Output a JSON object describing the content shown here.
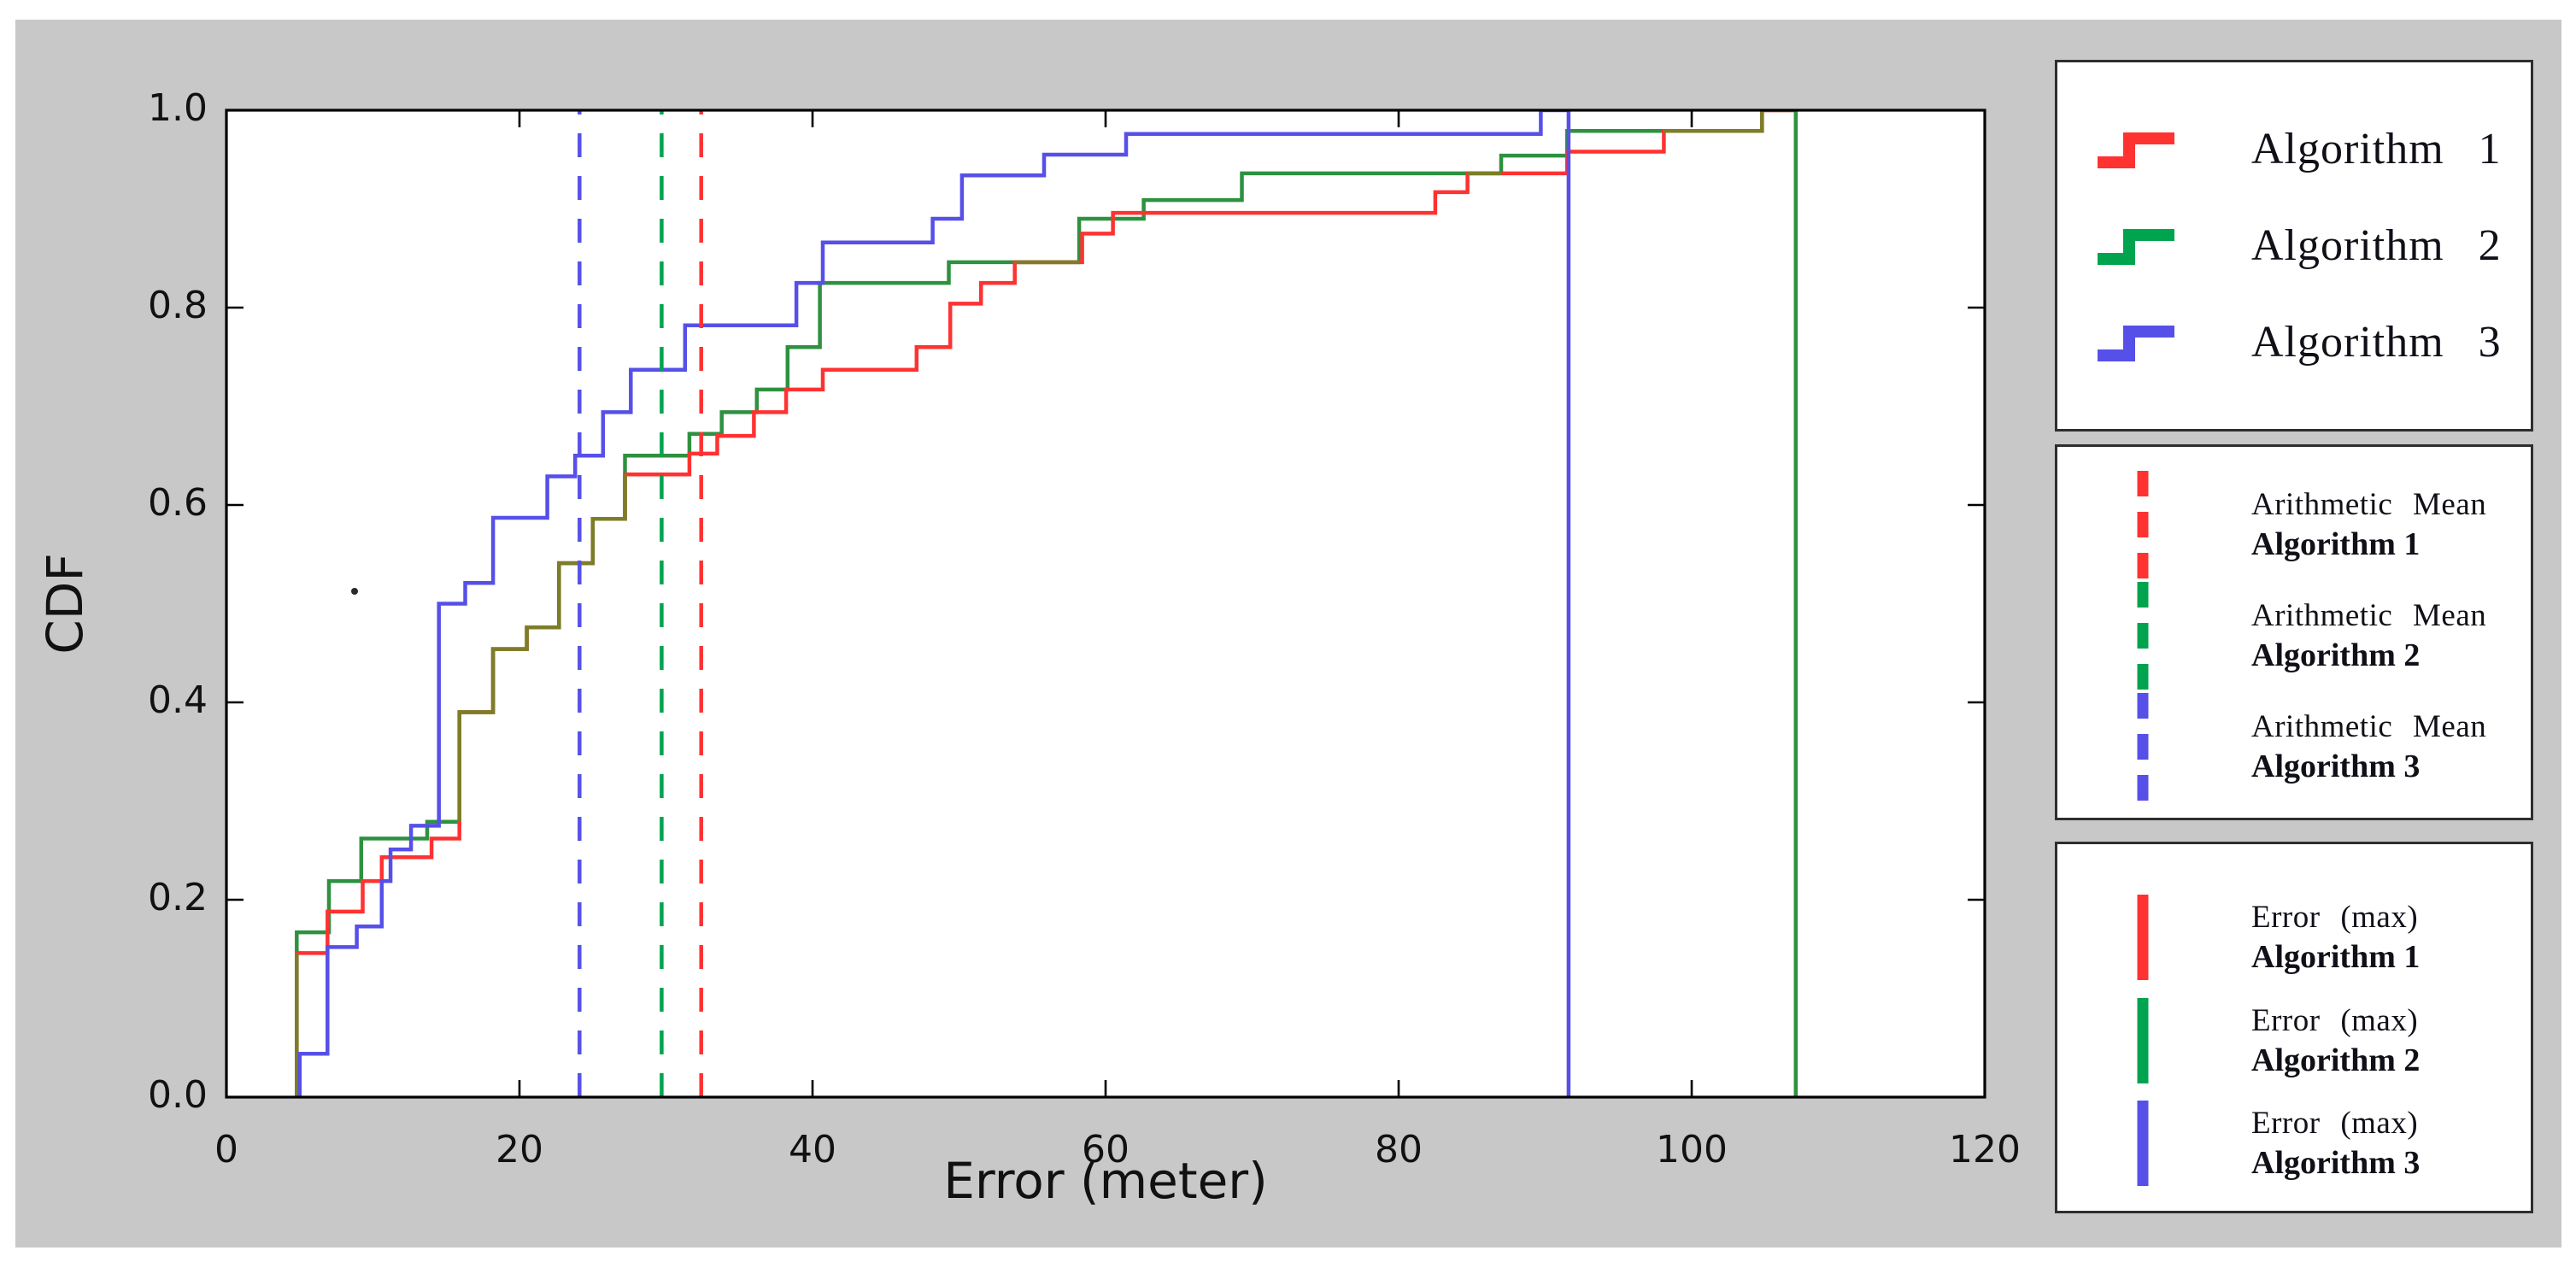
{
  "chart_data": {
    "type": "line",
    "subtype": "cdf-step",
    "title": "",
    "xlabel": "Error (meter)",
    "ylabel": "CDF",
    "xlim": [
      0,
      120
    ],
    "ylim": [
      0.0,
      1.0
    ],
    "grid": "off",
    "xticks": {
      "values": [
        0,
        20,
        40,
        60,
        80,
        100,
        120
      ],
      "labels": [
        "0",
        "20",
        "40",
        "60",
        "80",
        "100",
        "120"
      ]
    },
    "yticks": {
      "values": [
        0.0,
        0.2,
        0.4,
        0.6,
        0.8,
        1.0
      ],
      "labels": [
        "0.0",
        "0.2",
        "0.4",
        "0.6",
        "0.8",
        "1.0"
      ]
    },
    "series": [
      {
        "name": "Algorithm 1",
        "color_key": "red",
        "extend_to": 107.1,
        "steps": [
          [
            4.8,
            0.146
          ],
          [
            6.9,
            0.188
          ],
          [
            9.3,
            0.219
          ],
          [
            10.6,
            0.243
          ],
          [
            14.0,
            0.262
          ],
          [
            15.9,
            0.39
          ],
          [
            18.2,
            0.454
          ],
          [
            20.5,
            0.476
          ],
          [
            22.7,
            0.541
          ],
          [
            25.0,
            0.586
          ],
          [
            27.2,
            0.631
          ],
          [
            31.6,
            0.652
          ],
          [
            33.5,
            0.67
          ],
          [
            36.0,
            0.694
          ],
          [
            38.2,
            0.717
          ],
          [
            40.7,
            0.737
          ],
          [
            47.1,
            0.76
          ],
          [
            49.4,
            0.804
          ],
          [
            51.5,
            0.825
          ],
          [
            53.8,
            0.846
          ],
          [
            58.4,
            0.875
          ],
          [
            60.5,
            0.896
          ],
          [
            82.5,
            0.917
          ],
          [
            84.7,
            0.936
          ],
          [
            91.5,
            0.958
          ],
          [
            98.1,
            0.979
          ],
          [
            104.8,
            1.0
          ]
        ]
      },
      {
        "name": "Algorithm 2",
        "color_key": "green",
        "extend_to": 107.1,
        "steps": [
          [
            4.8,
            0.167
          ],
          [
            7.0,
            0.219
          ],
          [
            9.2,
            0.262
          ],
          [
            13.7,
            0.279
          ],
          [
            15.9,
            0.39
          ],
          [
            18.2,
            0.454
          ],
          [
            20.5,
            0.476
          ],
          [
            22.7,
            0.541
          ],
          [
            25.0,
            0.586
          ],
          [
            27.2,
            0.65
          ],
          [
            31.6,
            0.672
          ],
          [
            33.8,
            0.694
          ],
          [
            36.2,
            0.717
          ],
          [
            38.3,
            0.76
          ],
          [
            40.5,
            0.825
          ],
          [
            49.3,
            0.846
          ],
          [
            58.2,
            0.89
          ],
          [
            62.6,
            0.909
          ],
          [
            69.3,
            0.936
          ],
          [
            87.0,
            0.954
          ],
          [
            91.5,
            0.979
          ],
          [
            104.8,
            1.0
          ]
        ]
      },
      {
        "name": "Algorithm 3",
        "color_key": "blue",
        "extend_to": 91.6,
        "steps": [
          [
            5.0,
            0.044
          ],
          [
            6.9,
            0.152
          ],
          [
            8.9,
            0.173
          ],
          [
            10.6,
            0.219
          ],
          [
            11.2,
            0.251
          ],
          [
            12.6,
            0.275
          ],
          [
            14.5,
            0.5
          ],
          [
            16.3,
            0.521
          ],
          [
            18.2,
            0.587
          ],
          [
            21.9,
            0.629
          ],
          [
            23.8,
            0.65
          ],
          [
            25.7,
            0.694
          ],
          [
            27.6,
            0.737
          ],
          [
            31.3,
            0.782
          ],
          [
            38.9,
            0.825
          ],
          [
            40.7,
            0.866
          ],
          [
            48.2,
            0.89
          ],
          [
            50.2,
            0.934
          ],
          [
            55.8,
            0.955
          ],
          [
            61.4,
            0.976
          ],
          [
            89.7,
            1.0
          ]
        ]
      }
    ],
    "overlap_segments": [
      [
        [
          4.8,
          0.0
        ],
        [
          4.8,
          0.146
        ]
      ],
      [
        [
          15.9,
          0.279
        ],
        [
          15.9,
          0.39
        ],
        [
          18.2,
          0.39
        ],
        [
          18.2,
          0.454
        ],
        [
          20.5,
          0.454
        ],
        [
          20.5,
          0.476
        ],
        [
          22.7,
          0.476
        ],
        [
          22.7,
          0.541
        ],
        [
          25.0,
          0.541
        ],
        [
          25.0,
          0.586
        ],
        [
          27.2,
          0.586
        ],
        [
          27.2,
          0.631
        ]
      ],
      [
        [
          53.8,
          0.846
        ],
        [
          58.2,
          0.846
        ]
      ],
      [
        [
          84.7,
          0.936
        ],
        [
          87.0,
          0.936
        ]
      ],
      [
        [
          98.1,
          0.979
        ],
        [
          104.8,
          0.979
        ],
        [
          104.8,
          1.0
        ]
      ]
    ],
    "mean_lines": [
      {
        "label": "Arithmetic Mean Algorithm 1",
        "x": 32.4,
        "color_key": "red",
        "style": "dashed"
      },
      {
        "label": "Arithmetic Mean Algorithm 2",
        "x": 29.7,
        "color_key": "green_bright",
        "style": "dashed"
      },
      {
        "label": "Arithmetic Mean Algorithm 3",
        "x": 24.1,
        "color_key": "blue",
        "style": "dashed"
      }
    ],
    "max_lines": [
      {
        "label": "Error (max) Algorithm 2",
        "x": 107.1,
        "color_key": "green",
        "style": "solid"
      },
      {
        "label": "Error (max) Algorithm 3",
        "x": 91.6,
        "color_key": "blue",
        "style": "solid"
      }
    ]
  },
  "legend_curves": {
    "items": [
      {
        "label": "Algorithm 1",
        "color_key": "red"
      },
      {
        "label": "Algorithm 2",
        "color_key": "green_bright"
      },
      {
        "label": "Algorithm 3",
        "color_key": "blue"
      }
    ]
  },
  "legend_means": {
    "items": [
      {
        "line1": "Arithmetic Mean",
        "line2": "Algorithm 1",
        "color_key": "red"
      },
      {
        "line1": "Arithmetic Mean",
        "line2": "Algorithm 2",
        "color_key": "green_bright"
      },
      {
        "line1": "Arithmetic Mean",
        "line2": "Algorithm 3",
        "color_key": "blue"
      }
    ]
  },
  "legend_max": {
    "items": [
      {
        "line1": "Error (max)",
        "line2": "Algorithm 1",
        "color_key": "red"
      },
      {
        "line1": "Error (max)",
        "line2": "Algorithm 2",
        "color_key": "green_bright"
      },
      {
        "line1": "Error (max)",
        "line2": "Algorithm 3",
        "color_key": "blue"
      }
    ]
  },
  "colors": {
    "background": "#c8c8c8",
    "plot_bg": "#ffffff",
    "axis": "#000000",
    "text": "#111111",
    "red": "#ff3232",
    "green": "#2e9140",
    "green_bright": "#00a44f",
    "blue": "#5650e8",
    "olive": "#7d7d28",
    "legend_border": "#2e2e2e"
  }
}
